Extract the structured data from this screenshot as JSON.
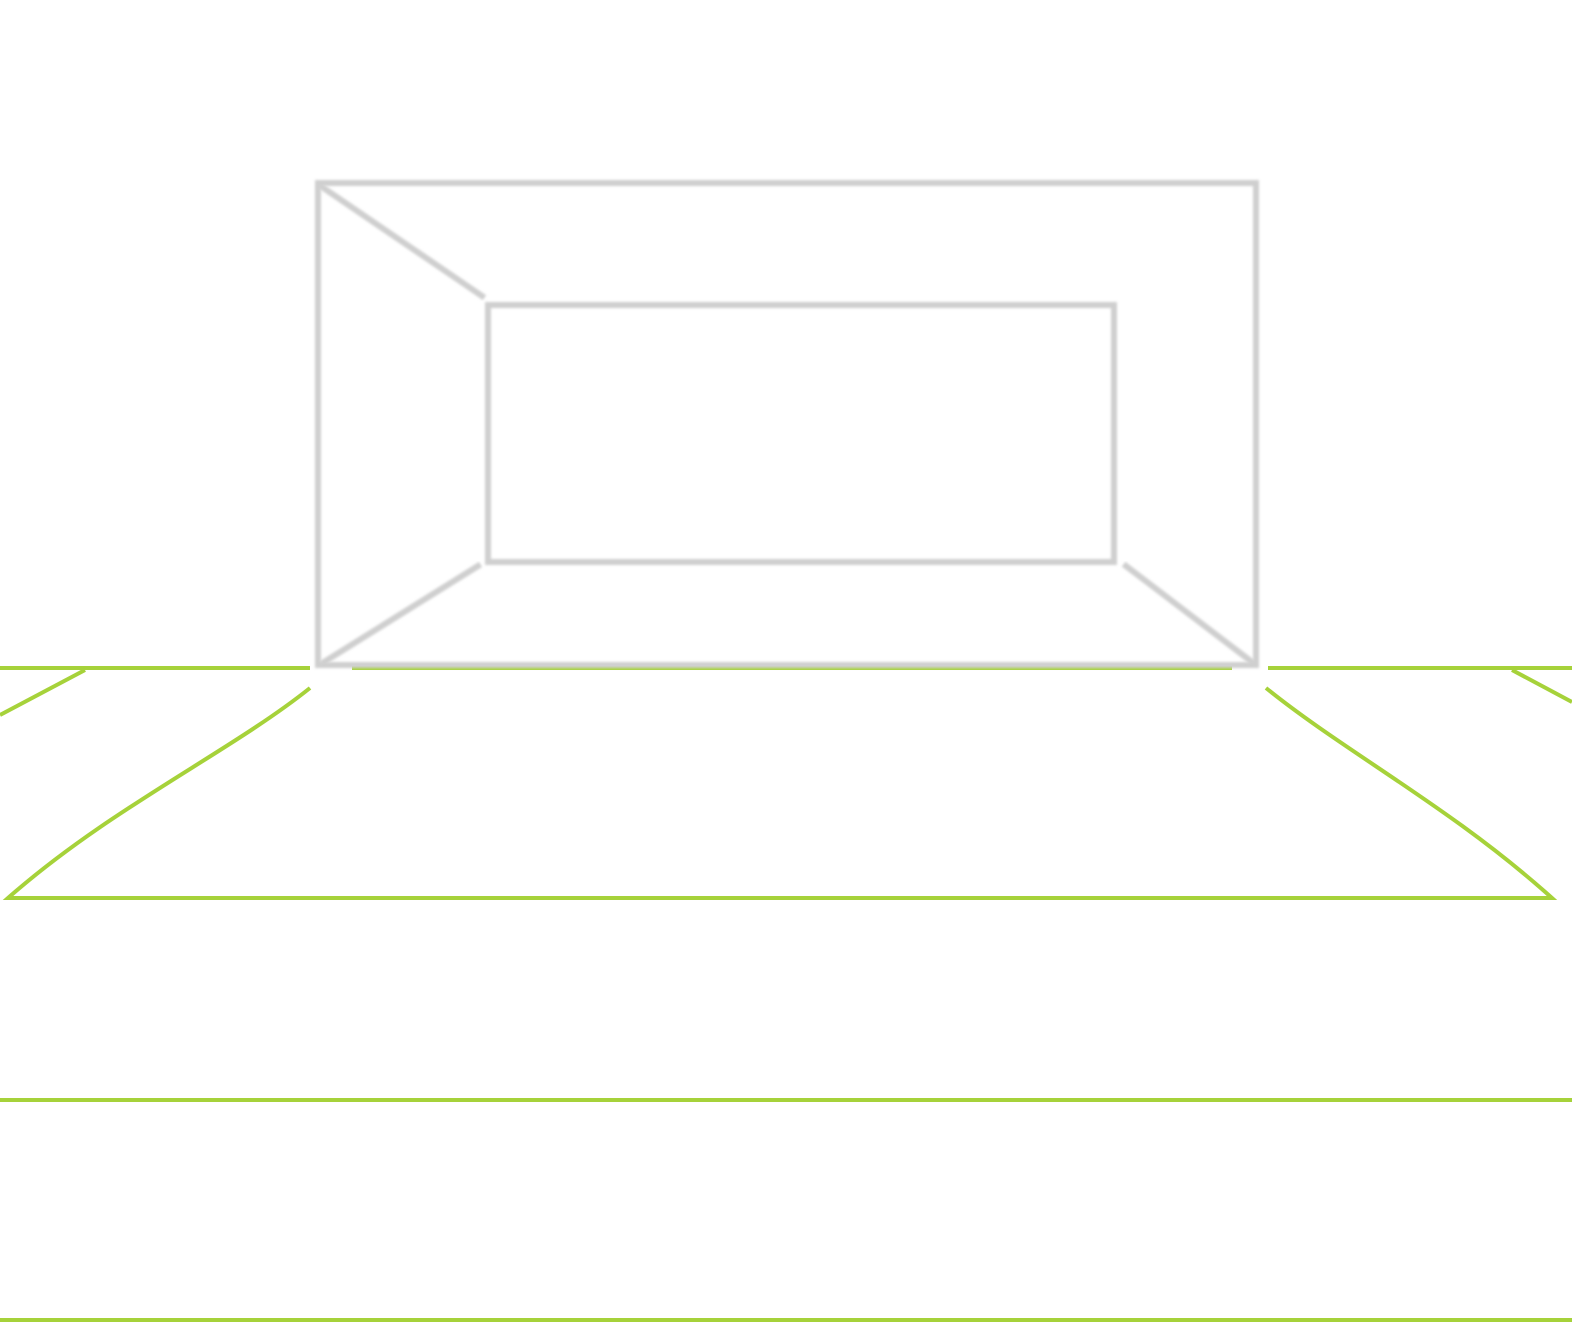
{
  "colors": {
    "background": "#ffffff",
    "pitch_line": "#a6d23a",
    "goal_frame": "#cfcfcf",
    "goal_frame_highlight": "#f2f2f2"
  },
  "icons": {
    "goal": "goal-frame-icon",
    "pitch": "pitch-markings-icon"
  }
}
